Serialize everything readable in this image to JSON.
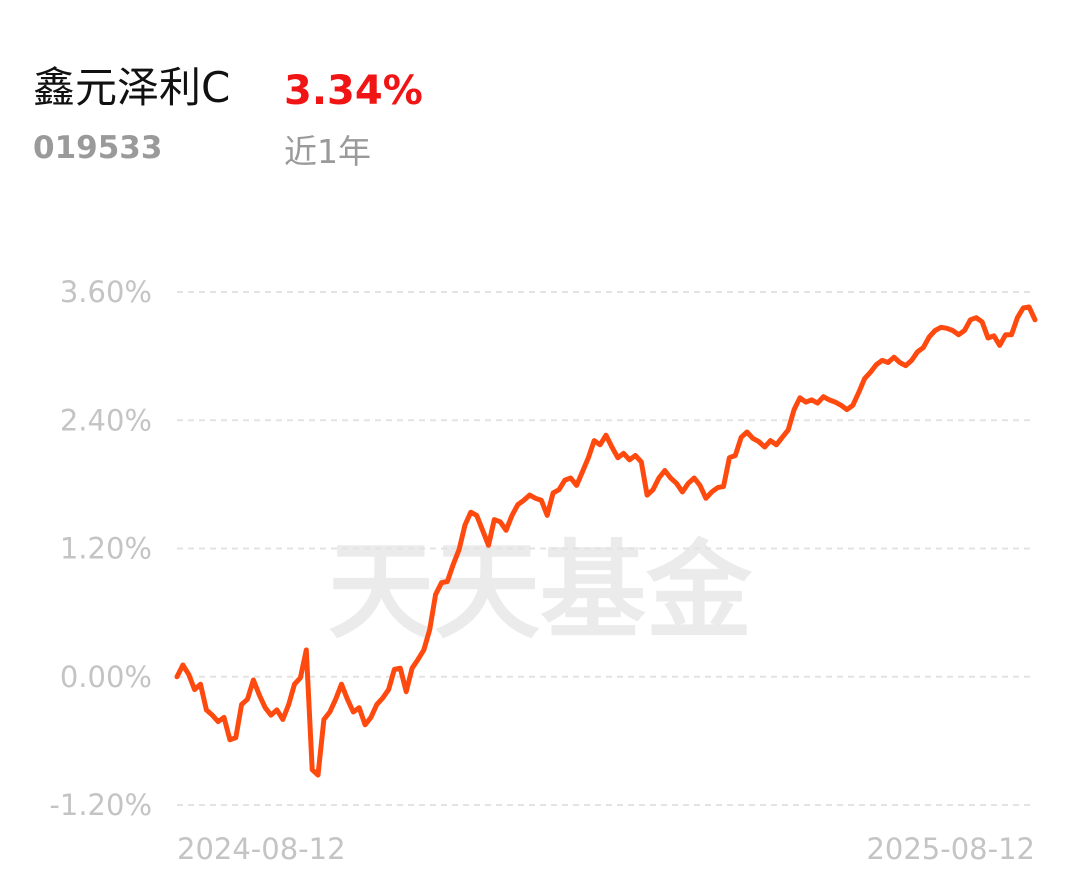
{
  "header": {
    "name": "鑫元泽利C",
    "return": "3.34%",
    "code": "019533",
    "period": "近1年"
  },
  "watermark": "天天基金",
  "chart_data": {
    "type": "line",
    "categories": [
      "2024-08-12",
      null,
      null,
      null,
      null,
      null,
      null,
      null,
      null,
      null,
      null,
      null,
      null,
      null,
      null,
      null,
      null,
      null,
      null,
      null,
      null,
      null,
      null,
      null,
      null,
      null,
      null,
      null,
      null,
      null,
      null,
      null,
      null,
      null,
      null,
      null,
      null,
      null,
      null,
      null,
      null,
      null,
      null,
      null,
      null,
      null,
      null,
      null,
      null,
      null,
      null,
      null,
      null,
      null,
      null,
      null,
      null,
      null,
      null,
      null,
      null,
      null,
      null,
      null,
      null,
      null,
      null,
      null,
      null,
      null,
      null,
      null,
      null,
      null,
      null,
      null,
      null,
      null,
      null,
      null,
      null,
      null,
      null,
      null,
      null,
      null,
      null,
      null,
      null,
      null,
      null,
      null,
      null,
      null,
      null,
      null,
      null,
      null,
      null,
      null,
      null,
      null,
      null,
      null,
      null,
      null,
      null,
      null,
      null,
      null,
      null,
      null,
      null,
      null,
      null,
      null,
      null,
      null,
      null,
      null,
      null,
      null,
      null,
      null,
      null,
      null,
      null,
      null,
      null,
      null,
      null,
      null,
      null,
      null,
      null,
      null,
      null,
      null,
      null,
      null,
      null,
      null,
      null,
      null,
      null,
      null,
      "2025-08-12"
    ],
    "series": [
      {
        "color": "#ff4a0f",
        "values": [
          0,
          0.11,
          0.02,
          -0.12,
          -0.07,
          -0.31,
          -0.36,
          -0.42,
          -0.38,
          -0.59,
          -0.57,
          -0.26,
          -0.21,
          -0.03,
          -0.17,
          -0.29,
          -0.36,
          -0.31,
          -0.4,
          -0.26,
          -0.07,
          -0.01,
          0.25,
          -0.87,
          -0.92,
          -0.4,
          -0.33,
          -0.21,
          -0.07,
          -0.21,
          -0.33,
          -0.29,
          -0.45,
          -0.38,
          -0.26,
          -0.2,
          -0.12,
          0.07,
          0.08,
          -0.14,
          0.08,
          0.16,
          0.25,
          0.44,
          0.77,
          0.88,
          0.89,
          1.05,
          1.19,
          1.42,
          1.54,
          1.51,
          1.37,
          1.23,
          1.47,
          1.45,
          1.37,
          1.51,
          1.61,
          1.65,
          1.7,
          1.67,
          1.65,
          1.51,
          1.72,
          1.75,
          1.84,
          1.86,
          1.79,
          1.92,
          2.05,
          2.21,
          2.17,
          2.26,
          2.15,
          2.05,
          2.09,
          2.03,
          2.07,
          2.01,
          1.7,
          1.75,
          1.86,
          1.93,
          1.86,
          1.81,
          1.73,
          1.81,
          1.86,
          1.79,
          1.67,
          1.73,
          1.77,
          1.78,
          2.05,
          2.07,
          2.24,
          2.29,
          2.23,
          2.2,
          2.15,
          2.21,
          2.17,
          2.24,
          2.31,
          2.5,
          2.61,
          2.57,
          2.59,
          2.56,
          2.62,
          2.59,
          2.57,
          2.54,
          2.5,
          2.54,
          2.66,
          2.79,
          2.85,
          2.92,
          2.96,
          2.94,
          2.99,
          2.94,
          2.91,
          2.96,
          3.04,
          3.08,
          3.18,
          3.24,
          3.27,
          3.26,
          3.24,
          3.2,
          3.24,
          3.34,
          3.36,
          3.32,
          3.17,
          3.19,
          3.1,
          3.2,
          3.2,
          3.36,
          3.45,
          3.46,
          3.34
        ]
      }
    ],
    "ylim": [
      -1.2,
      3.6
    ],
    "yticks": [
      {
        "value": -1.2,
        "label": "-1.20%"
      },
      {
        "value": 0,
        "label": "0.00%"
      },
      {
        "value": 1.2,
        "label": "1.20%"
      },
      {
        "value": 2.4,
        "label": "2.40%"
      },
      {
        "value": 3.6,
        "label": "3.60%"
      }
    ],
    "grid": true
  }
}
